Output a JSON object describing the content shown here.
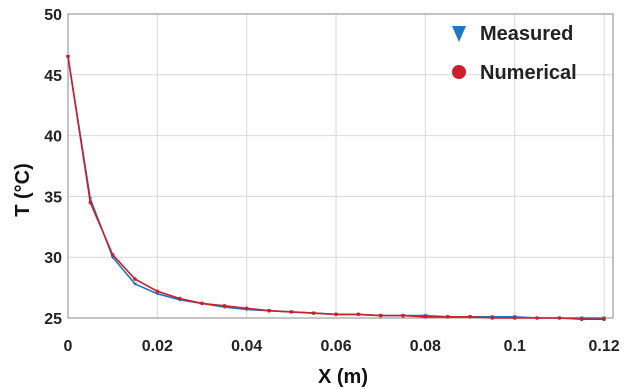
{
  "chart_data": {
    "type": "line",
    "xlabel": "X (m)",
    "ylabel": "T (°C)",
    "xlim": [
      0,
      0.122
    ],
    "ylim": [
      25,
      50
    ],
    "xticks": [
      0,
      0.02,
      0.04,
      0.06,
      0.08,
      0.1,
      0.12
    ],
    "xtick_labels": [
      "0",
      "0.02",
      "0.04",
      "0.06",
      "0.08",
      "0.1",
      "0.12"
    ],
    "yticks": [
      25,
      30,
      35,
      40,
      45,
      50
    ],
    "ytick_labels": [
      "25",
      "30",
      "35",
      "40",
      "45",
      "50"
    ],
    "grid": true,
    "legend_position": "top-right",
    "series": [
      {
        "name": "Measured",
        "marker": "triangle-down",
        "color": "#1f77c4",
        "x": [
          0.0,
          0.005,
          0.01,
          0.015,
          0.02,
          0.025,
          0.03,
          0.035,
          0.04,
          0.045,
          0.05,
          0.055,
          0.06,
          0.065,
          0.07,
          0.075,
          0.08,
          0.085,
          0.09,
          0.095,
          0.1,
          0.105,
          0.11,
          0.115,
          0.12
        ],
        "y": [
          46.5,
          34.8,
          30.0,
          27.8,
          27.0,
          26.5,
          26.2,
          25.9,
          25.7,
          25.6,
          25.5,
          25.4,
          25.3,
          25.3,
          25.2,
          25.2,
          25.2,
          25.1,
          25.1,
          25.1,
          25.1,
          25.0,
          25.0,
          25.0,
          25.0
        ]
      },
      {
        "name": "Numerical",
        "marker": "circle",
        "color": "#cc1f2b",
        "x": [
          0.0,
          0.005,
          0.01,
          0.015,
          0.02,
          0.025,
          0.03,
          0.035,
          0.04,
          0.045,
          0.05,
          0.055,
          0.06,
          0.065,
          0.07,
          0.075,
          0.08,
          0.085,
          0.09,
          0.095,
          0.1,
          0.105,
          0.11,
          0.115,
          0.12
        ],
        "y": [
          46.5,
          34.5,
          30.2,
          28.2,
          27.2,
          26.6,
          26.2,
          26.0,
          25.8,
          25.6,
          25.5,
          25.4,
          25.3,
          25.3,
          25.2,
          25.2,
          25.1,
          25.1,
          25.1,
          25.0,
          25.0,
          25.0,
          25.0,
          24.9,
          24.9
        ]
      }
    ]
  },
  "colors": {
    "grid": "#d8d8d8",
    "axis": "#888888"
  }
}
